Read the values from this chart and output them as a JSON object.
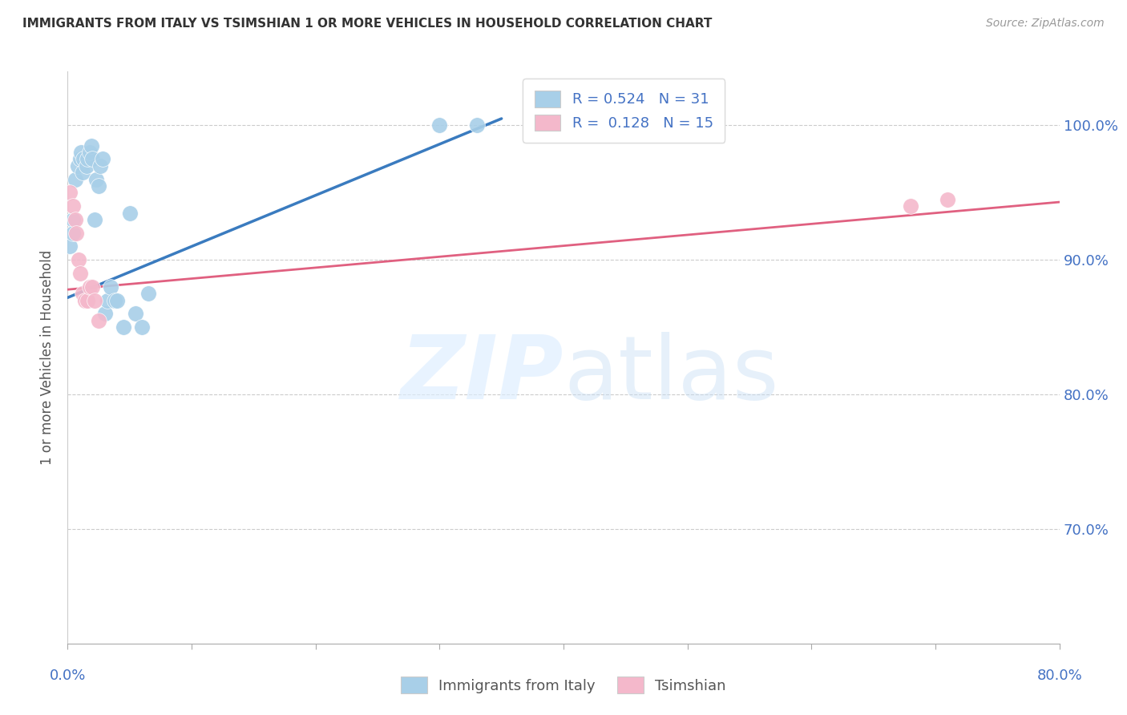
{
  "title": "IMMIGRANTS FROM ITALY VS TSIMSHIAN 1 OR MORE VEHICLES IN HOUSEHOLD CORRELATION CHART",
  "source": "Source: ZipAtlas.com",
  "ylabel": "1 or more Vehicles in Household",
  "ytick_labels": [
    "100.0%",
    "90.0%",
    "80.0%",
    "70.0%"
  ],
  "ytick_values": [
    1.0,
    0.9,
    0.8,
    0.7
  ],
  "xlim": [
    0.0,
    0.8
  ],
  "ylim": [
    0.615,
    1.04
  ],
  "blue_R": 0.524,
  "blue_N": 31,
  "pink_R": 0.128,
  "pink_N": 15,
  "blue_color": "#a8cfe8",
  "pink_color": "#f4b8cb",
  "blue_line_color": "#3a7bbf",
  "pink_line_color": "#e06080",
  "legend_blue_label": "Immigrants from Italy",
  "legend_pink_label": "Tsimshian",
  "blue_x": [
    0.002,
    0.004,
    0.004,
    0.006,
    0.008,
    0.01,
    0.011,
    0.012,
    0.013,
    0.015,
    0.016,
    0.018,
    0.019,
    0.02,
    0.022,
    0.023,
    0.025,
    0.026,
    0.028,
    0.03,
    0.032,
    0.035,
    0.038,
    0.04,
    0.045,
    0.05,
    0.055,
    0.06,
    0.065,
    0.3,
    0.33
  ],
  "blue_y": [
    0.91,
    0.93,
    0.92,
    0.96,
    0.97,
    0.975,
    0.98,
    0.965,
    0.975,
    0.97,
    0.975,
    0.98,
    0.985,
    0.975,
    0.93,
    0.96,
    0.955,
    0.97,
    0.975,
    0.86,
    0.87,
    0.88,
    0.87,
    0.87,
    0.85,
    0.935,
    0.86,
    0.85,
    0.875,
    1.0,
    1.0
  ],
  "pink_x": [
    0.002,
    0.004,
    0.006,
    0.007,
    0.009,
    0.01,
    0.012,
    0.014,
    0.016,
    0.018,
    0.02,
    0.022,
    0.025,
    0.68,
    0.71
  ],
  "pink_y": [
    0.95,
    0.94,
    0.93,
    0.92,
    0.9,
    0.89,
    0.875,
    0.87,
    0.87,
    0.88,
    0.88,
    0.87,
    0.855,
    0.94,
    0.945
  ],
  "blue_trend_x": [
    0.0,
    0.35
  ],
  "blue_trend_y": [
    0.872,
    1.005
  ],
  "pink_trend_x": [
    0.0,
    0.8
  ],
  "pink_trend_y": [
    0.878,
    0.943
  ],
  "xtick_positions": [
    0.0,
    0.1,
    0.2,
    0.3,
    0.4,
    0.5,
    0.6,
    0.7,
    0.8
  ]
}
